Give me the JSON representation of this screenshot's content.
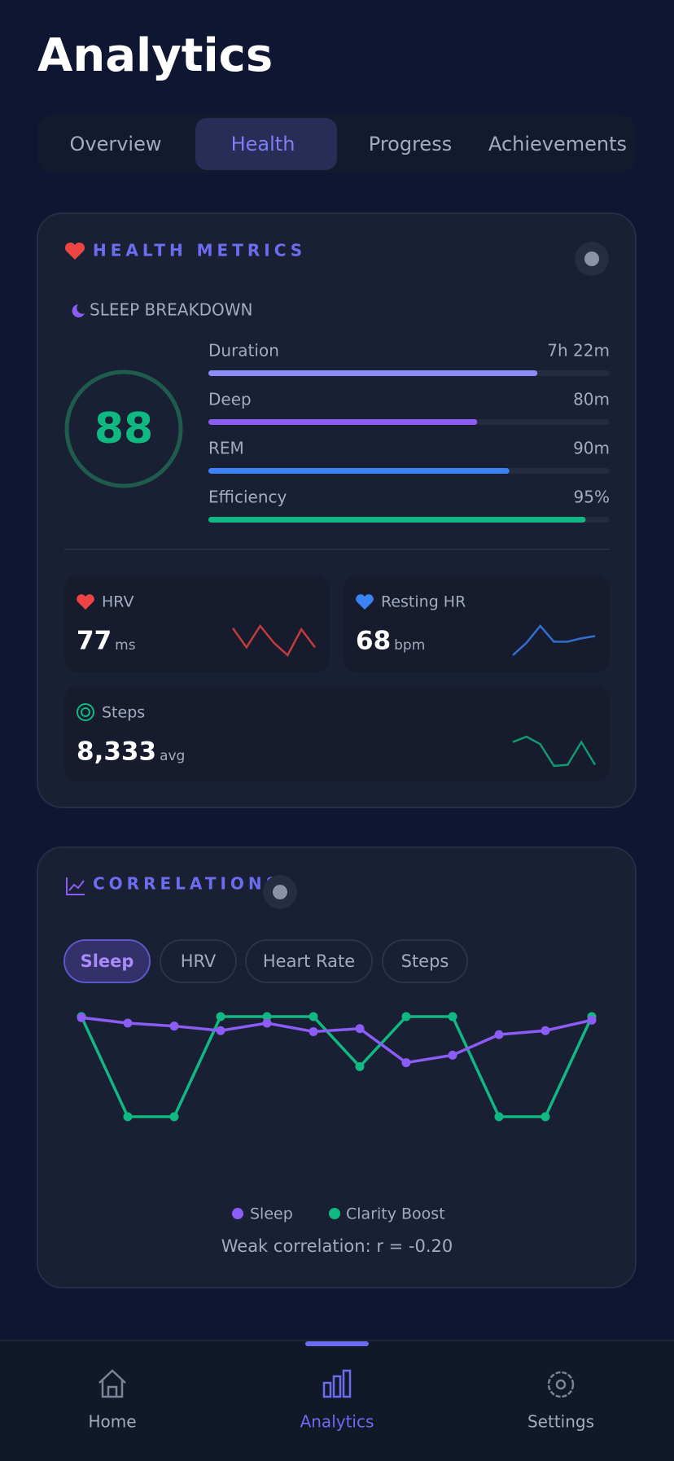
{
  "header": {
    "title": "Analytics"
  },
  "tabs": {
    "items": [
      "Overview",
      "Health",
      "Progress",
      "Achievements"
    ],
    "active": 1
  },
  "health": {
    "title": "HEALTH METRICS",
    "sleep": {
      "title": "SLEEP BREAKDOWN",
      "score": 88,
      "rows": [
        {
          "label": "Duration",
          "value": "7h 22m",
          "progress": 82,
          "color": "#8b8cf6"
        },
        {
          "label": "Deep",
          "value": "80m",
          "progress": 67,
          "color": "#8b5cf6"
        },
        {
          "label": "REM",
          "value": "90m",
          "progress": 75,
          "color": "#3b82f6"
        },
        {
          "label": "Efficiency",
          "value": "95%",
          "progress": 94,
          "color": "#10b981"
        }
      ]
    },
    "metrics": [
      {
        "label": "HRV",
        "value": "77",
        "unit": "ms",
        "color": "#ef4444",
        "spark": [
          30,
          13,
          32,
          17,
          6,
          29,
          13
        ]
      },
      {
        "label": "Resting HR",
        "value": "68",
        "unit": "bpm",
        "color": "#3b82f6",
        "spark": [
          6,
          17,
          32,
          18,
          18,
          21,
          23
        ]
      },
      {
        "label": "Steps",
        "value": "8,333",
        "unit": "avg",
        "color": "#10b981",
        "spark": [
          30,
          35,
          28,
          8,
          9,
          30,
          9
        ]
      }
    ]
  },
  "correlations": {
    "title": "CORRELATIONS",
    "chips": {
      "items": [
        "Sleep",
        "HRV",
        "Heart Rate",
        "Steps"
      ],
      "active": 0
    },
    "chart_data": {
      "type": "line",
      "series": [
        {
          "name": "Sleep",
          "color": "#8b5cf6",
          "values": [
            2.98,
            2.87,
            2.81,
            2.72,
            2.87,
            2.7,
            2.76,
            2.08,
            2.23,
            2.64,
            2.72,
            2.93
          ]
        },
        {
          "name": "Clarity Boost",
          "color": "#10b981",
          "values": [
            3,
            1,
            1,
            3,
            3,
            3,
            2,
            3,
            3,
            1,
            1,
            3
          ]
        }
      ]
    },
    "note": "Weak correlation: r = -0.20"
  },
  "nav": {
    "items": [
      "Home",
      "Analytics",
      "Settings"
    ],
    "active": 1
  }
}
